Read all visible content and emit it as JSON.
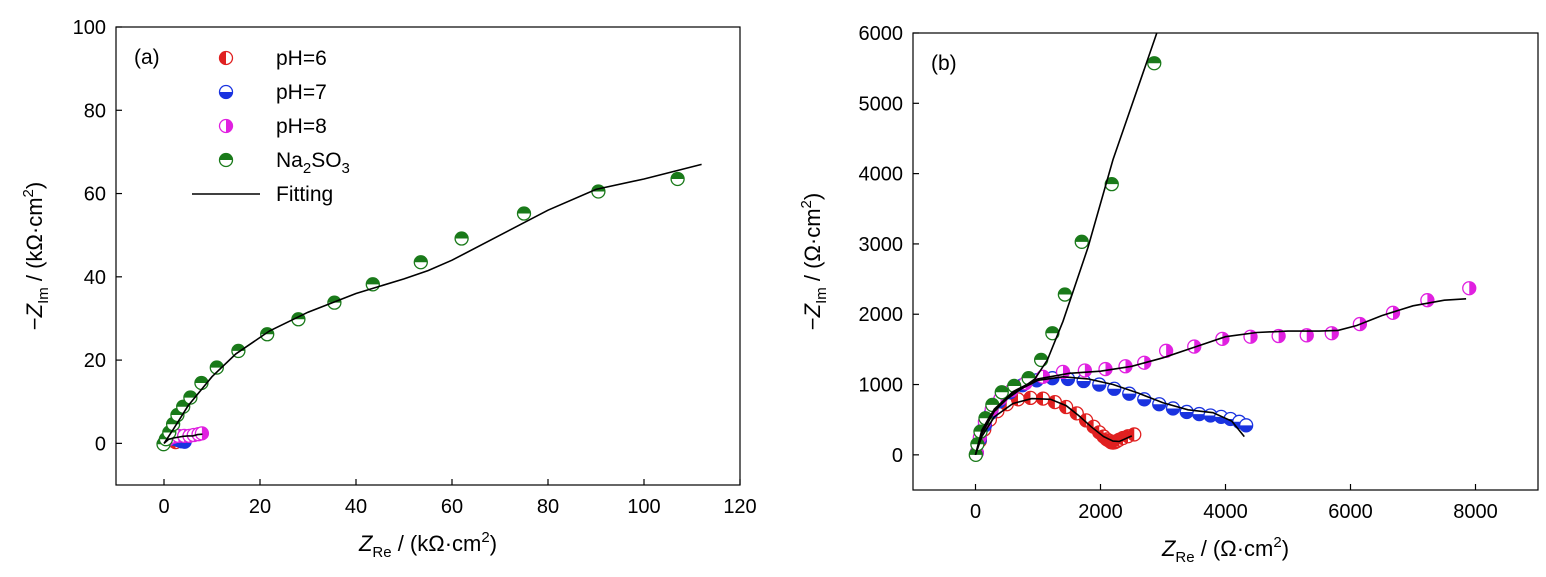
{
  "chart_data": [
    {
      "type": "scatter",
      "panel_label": "(a)",
      "xlabel": {
        "symbol": "Z",
        "sub": "Re",
        "unit_pre": " / (kΩ·cm",
        "sup": "2",
        "unit_post": ")"
      },
      "ylabel": {
        "prefix": "−",
        "symbol": "Z",
        "sub": "Im",
        "unit_pre": " / (kΩ·cm",
        "sup": "2",
        "unit_post": ")"
      },
      "xlim": [
        -10,
        120
      ],
      "ylim": [
        -10,
        100
      ],
      "xticks": [
        0,
        20,
        40,
        60,
        80,
        100,
        120
      ],
      "yticks": [
        0,
        20,
        40,
        60,
        80,
        100
      ],
      "grid": false,
      "legend_position": "top-left",
      "legend": [
        {
          "parts": [
            "pH=6"
          ],
          "color": "#e02020",
          "half": "left"
        },
        {
          "parts": [
            "pH=7"
          ],
          "color": "#1a33e0",
          "half": "bottom"
        },
        {
          "parts": [
            "pH=8"
          ],
          "color": "#e020e0",
          "half": "right"
        },
        {
          "parts": [
            "Na",
            "2",
            "SO",
            "3"
          ],
          "color": "#1a7a1a",
          "half": "top"
        },
        {
          "parts": [
            "Fitting"
          ],
          "line": true
        }
      ],
      "series": [
        {
          "name": "pH=6",
          "color": "#e02020",
          "half": "left",
          "x": [
            0.2,
            0.6,
            1.1,
            1.6,
            2.0,
            2.4
          ],
          "y": [
            0.3,
            0.8,
            1.0,
            0.9,
            0.6,
            0.3
          ]
        },
        {
          "name": "pH=7",
          "color": "#1a33e0",
          "half": "bottom",
          "x": [
            0.2,
            0.8,
            1.5,
            2.2,
            3.0,
            3.7,
            4.3
          ],
          "y": [
            0.3,
            0.9,
            1.2,
            1.1,
            0.8,
            0.5,
            0.4
          ]
        },
        {
          "name": "pH=8",
          "color": "#e020e0",
          "half": "right",
          "x": [
            0.2,
            1.0,
            2.0,
            3.0,
            4.2,
            5.3,
            6.2,
            7.2,
            7.9
          ],
          "y": [
            0.3,
            1.1,
            1.6,
            1.8,
            1.8,
            1.8,
            2.0,
            2.2,
            2.4
          ]
        },
        {
          "name": "Na2SO3",
          "color": "#1a7a1a",
          "half": "top",
          "x": [
            -0.1,
            0.4,
            1.1,
            1.9,
            2.8,
            4.0,
            5.5,
            7.8,
            11.0,
            15.5,
            21.5,
            28.0,
            35.5,
            43.5,
            53.5,
            62.0,
            75.0,
            90.5,
            107.0
          ],
          "y": [
            -0.2,
            1.0,
            2.6,
            4.6,
            6.8,
            8.8,
            11.0,
            14.5,
            18.2,
            22.2,
            26.2,
            29.8,
            33.8,
            38.2,
            43.5,
            49.2,
            55.2,
            60.5,
            63.5
          ]
        }
      ],
      "fits": [
        {
          "name": "Fitting",
          "x": [
            0,
            2,
            5,
            10,
            15,
            22,
            30,
            40,
            50,
            55,
            60,
            70,
            80,
            90,
            100,
            112
          ],
          "y": [
            0,
            3.5,
            9,
            16,
            21.5,
            27,
            31.5,
            36,
            39.5,
            41.5,
            44,
            50,
            56,
            61,
            63.5,
            67
          ]
        },
        {
          "name": "Fitting",
          "x": [
            0,
            1,
            2,
            3,
            4,
            5,
            6,
            7,
            8
          ],
          "y": [
            0,
            1.0,
            1.3,
            1.5,
            1.7,
            1.8,
            1.8,
            2.1,
            2.2
          ]
        }
      ]
    },
    {
      "type": "scatter",
      "panel_label": "(b)",
      "xlabel": {
        "symbol": "Z",
        "sub": "Re",
        "unit_pre": " / (Ω·cm",
        "sup": "2",
        "unit_post": ")"
      },
      "ylabel": {
        "prefix": "−",
        "symbol": "Z",
        "sub": "Im",
        "unit_pre": " / (Ω·cm",
        "sup": "2",
        "unit_post": ")"
      },
      "xlim": [
        -1000,
        9000
      ],
      "ylim": [
        -500,
        6000
      ],
      "xticks": [
        0,
        2000,
        4000,
        6000,
        8000
      ],
      "yticks": [
        0,
        1000,
        2000,
        3000,
        4000,
        5000,
        6000
      ],
      "grid": false,
      "legend": [],
      "series": [
        {
          "name": "pH=6",
          "color": "#e02020",
          "half": "left",
          "x": [
            20,
            70,
            140,
            230,
            350,
            500,
            680,
            880,
            1080,
            1270,
            1450,
            1620,
            1770,
            1890,
            1980,
            2050,
            2100,
            2140,
            2170,
            2200,
            2230,
            2260,
            2300,
            2360,
            2440,
            2540
          ],
          "y": [
            30,
            200,
            360,
            500,
            620,
            720,
            790,
            810,
            800,
            750,
            680,
            590,
            490,
            400,
            320,
            260,
            220,
            200,
            180,
            175,
            180,
            195,
            215,
            240,
            265,
            290
          ]
        },
        {
          "name": "pH=7",
          "color": "#1a33e0",
          "half": "bottom",
          "x": [
            20,
            70,
            150,
            250,
            380,
            550,
            750,
            980,
            1230,
            1480,
            1730,
            1980,
            2220,
            2460,
            2700,
            2940,
            3160,
            3380,
            3580,
            3760,
            3930,
            4080,
            4220,
            4330
          ],
          "y": [
            30,
            220,
            420,
            600,
            760,
            890,
            990,
            1060,
            1090,
            1080,
            1050,
            1000,
            940,
            870,
            790,
            720,
            660,
            610,
            580,
            560,
            540,
            510,
            470,
            420
          ]
        },
        {
          "name": "pH=8",
          "color": "#e020e0",
          "half": "right",
          "x": [
            20,
            70,
            150,
            260,
            400,
            580,
            800,
            1080,
            1400,
            1750,
            2080,
            2400,
            2700,
            3050,
            3500,
            3950,
            4400,
            4850,
            5300,
            5700,
            6150,
            6680,
            7230,
            7900
          ],
          "y": [
            30,
            250,
            470,
            650,
            800,
            920,
            1020,
            1110,
            1180,
            1200,
            1220,
            1260,
            1310,
            1480,
            1540,
            1650,
            1680,
            1690,
            1700,
            1730,
            1860,
            2020,
            2200,
            2370
          ]
        },
        {
          "name": "Na2SO3",
          "color": "#1a7a1a",
          "half": "top",
          "x": [
            5,
            30,
            80,
            160,
            270,
            420,
            620,
            850,
            1050,
            1230,
            1430,
            1700,
            2180,
            2860
          ],
          "y": [
            0,
            150,
            330,
            520,
            710,
            890,
            980,
            1090,
            1350,
            1730,
            2280,
            3030,
            3850,
            5570
          ]
        }
      ],
      "fits": [
        {
          "name": "Fitting",
          "x": [
            0,
            100,
            250,
            450,
            700,
            950,
            1150,
            1400,
            1800,
            2200,
            2900
          ],
          "y": [
            0,
            350,
            580,
            760,
            920,
            1080,
            1350,
            1900,
            2950,
            4200,
            6000
          ]
        },
        {
          "name": "Fitting",
          "x": [
            0,
            100,
            300,
            600,
            900,
            1200,
            1450,
            1650,
            1850,
            2050,
            2200,
            2300,
            2400,
            2500
          ],
          "y": [
            0,
            260,
            540,
            730,
            800,
            790,
            700,
            560,
            400,
            260,
            195,
            190,
            230,
            270
          ]
        },
        {
          "name": "Fitting",
          "x": [
            0,
            100,
            300,
            600,
            1000,
            1400,
            1800,
            2200,
            2600,
            3000,
            3400,
            3800,
            4100,
            4300
          ],
          "y": [
            0,
            300,
            620,
            880,
            1060,
            1110,
            1080,
            1000,
            880,
            740,
            640,
            600,
            480,
            260
          ]
        },
        {
          "name": "Fitting",
          "x": [
            0,
            100,
            300,
            600,
            1000,
            1500,
            2000,
            2500,
            3000,
            3500,
            4000,
            4500,
            5000,
            5500,
            5800,
            6100,
            6500,
            7000,
            7500,
            7850
          ],
          "y": [
            0,
            330,
            650,
            900,
            1080,
            1160,
            1190,
            1260,
            1380,
            1530,
            1680,
            1740,
            1760,
            1760,
            1770,
            1840,
            1980,
            2120,
            2200,
            2220
          ]
        }
      ]
    }
  ]
}
